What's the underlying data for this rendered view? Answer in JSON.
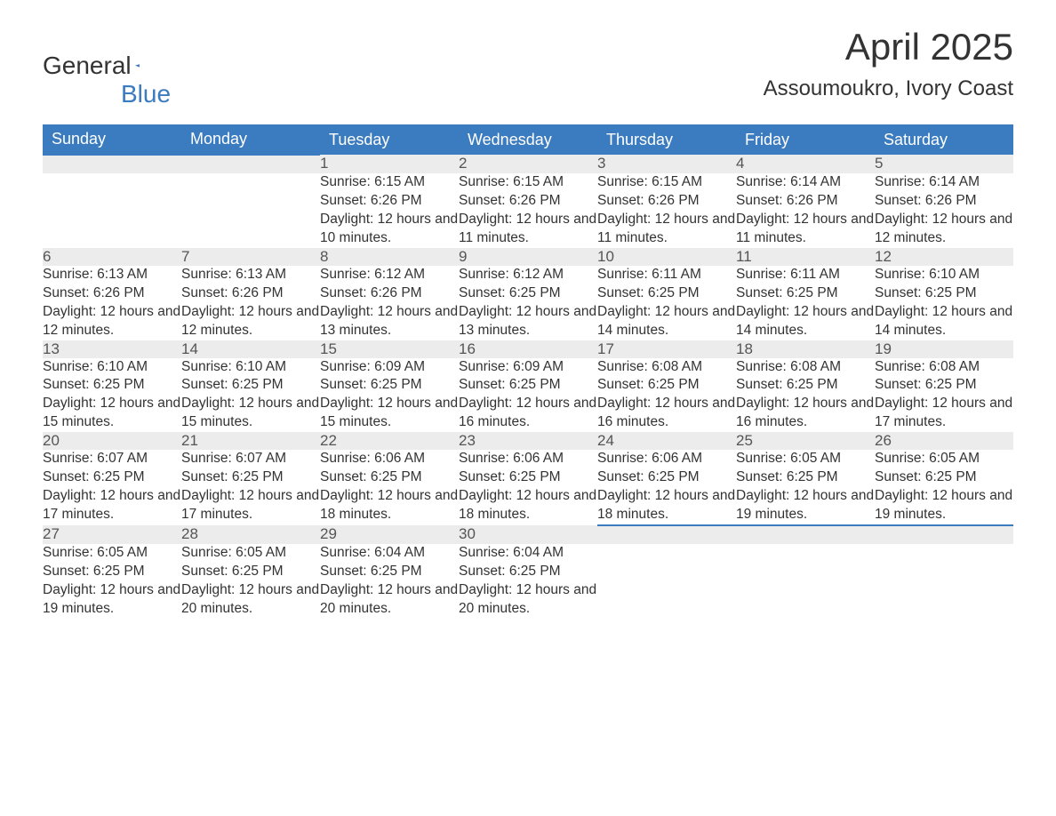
{
  "brand": {
    "part1": "General",
    "part2": "Blue"
  },
  "title": "April 2025",
  "location": "Assoumoukro, Ivory Coast",
  "colors": {
    "header_bg": "#3b7bbf",
    "header_text": "#ffffff",
    "daynum_bg": "#ececec",
    "daynum_border": "#3b7bbf",
    "body_text": "#333333",
    "page_bg": "#ffffff"
  },
  "typography": {
    "title_fontsize": 42,
    "location_fontsize": 24,
    "weekday_fontsize": 18,
    "daynum_fontsize": 17,
    "cell_fontsize": 15.5
  },
  "weekdays": [
    "Sunday",
    "Monday",
    "Tuesday",
    "Wednesday",
    "Thursday",
    "Friday",
    "Saturday"
  ],
  "weeks": [
    [
      null,
      null,
      {
        "n": "1",
        "sr": "Sunrise: 6:15 AM",
        "ss": "Sunset: 6:26 PM",
        "dl": "Daylight: 12 hours and 10 minutes."
      },
      {
        "n": "2",
        "sr": "Sunrise: 6:15 AM",
        "ss": "Sunset: 6:26 PM",
        "dl": "Daylight: 12 hours and 11 minutes."
      },
      {
        "n": "3",
        "sr": "Sunrise: 6:15 AM",
        "ss": "Sunset: 6:26 PM",
        "dl": "Daylight: 12 hours and 11 minutes."
      },
      {
        "n": "4",
        "sr": "Sunrise: 6:14 AM",
        "ss": "Sunset: 6:26 PM",
        "dl": "Daylight: 12 hours and 11 minutes."
      },
      {
        "n": "5",
        "sr": "Sunrise: 6:14 AM",
        "ss": "Sunset: 6:26 PM",
        "dl": "Daylight: 12 hours and 12 minutes."
      }
    ],
    [
      {
        "n": "6",
        "sr": "Sunrise: 6:13 AM",
        "ss": "Sunset: 6:26 PM",
        "dl": "Daylight: 12 hours and 12 minutes."
      },
      {
        "n": "7",
        "sr": "Sunrise: 6:13 AM",
        "ss": "Sunset: 6:26 PM",
        "dl": "Daylight: 12 hours and 12 minutes."
      },
      {
        "n": "8",
        "sr": "Sunrise: 6:12 AM",
        "ss": "Sunset: 6:26 PM",
        "dl": "Daylight: 12 hours and 13 minutes."
      },
      {
        "n": "9",
        "sr": "Sunrise: 6:12 AM",
        "ss": "Sunset: 6:25 PM",
        "dl": "Daylight: 12 hours and 13 minutes."
      },
      {
        "n": "10",
        "sr": "Sunrise: 6:11 AM",
        "ss": "Sunset: 6:25 PM",
        "dl": "Daylight: 12 hours and 14 minutes."
      },
      {
        "n": "11",
        "sr": "Sunrise: 6:11 AM",
        "ss": "Sunset: 6:25 PM",
        "dl": "Daylight: 12 hours and 14 minutes."
      },
      {
        "n": "12",
        "sr": "Sunrise: 6:10 AM",
        "ss": "Sunset: 6:25 PM",
        "dl": "Daylight: 12 hours and 14 minutes."
      }
    ],
    [
      {
        "n": "13",
        "sr": "Sunrise: 6:10 AM",
        "ss": "Sunset: 6:25 PM",
        "dl": "Daylight: 12 hours and 15 minutes."
      },
      {
        "n": "14",
        "sr": "Sunrise: 6:10 AM",
        "ss": "Sunset: 6:25 PM",
        "dl": "Daylight: 12 hours and 15 minutes."
      },
      {
        "n": "15",
        "sr": "Sunrise: 6:09 AM",
        "ss": "Sunset: 6:25 PM",
        "dl": "Daylight: 12 hours and 15 minutes."
      },
      {
        "n": "16",
        "sr": "Sunrise: 6:09 AM",
        "ss": "Sunset: 6:25 PM",
        "dl": "Daylight: 12 hours and 16 minutes."
      },
      {
        "n": "17",
        "sr": "Sunrise: 6:08 AM",
        "ss": "Sunset: 6:25 PM",
        "dl": "Daylight: 12 hours and 16 minutes."
      },
      {
        "n": "18",
        "sr": "Sunrise: 6:08 AM",
        "ss": "Sunset: 6:25 PM",
        "dl": "Daylight: 12 hours and 16 minutes."
      },
      {
        "n": "19",
        "sr": "Sunrise: 6:08 AM",
        "ss": "Sunset: 6:25 PM",
        "dl": "Daylight: 12 hours and 17 minutes."
      }
    ],
    [
      {
        "n": "20",
        "sr": "Sunrise: 6:07 AM",
        "ss": "Sunset: 6:25 PM",
        "dl": "Daylight: 12 hours and 17 minutes."
      },
      {
        "n": "21",
        "sr": "Sunrise: 6:07 AM",
        "ss": "Sunset: 6:25 PM",
        "dl": "Daylight: 12 hours and 17 minutes."
      },
      {
        "n": "22",
        "sr": "Sunrise: 6:06 AM",
        "ss": "Sunset: 6:25 PM",
        "dl": "Daylight: 12 hours and 18 minutes."
      },
      {
        "n": "23",
        "sr": "Sunrise: 6:06 AM",
        "ss": "Sunset: 6:25 PM",
        "dl": "Daylight: 12 hours and 18 minutes."
      },
      {
        "n": "24",
        "sr": "Sunrise: 6:06 AM",
        "ss": "Sunset: 6:25 PM",
        "dl": "Daylight: 12 hours and 18 minutes."
      },
      {
        "n": "25",
        "sr": "Sunrise: 6:05 AM",
        "ss": "Sunset: 6:25 PM",
        "dl": "Daylight: 12 hours and 19 minutes."
      },
      {
        "n": "26",
        "sr": "Sunrise: 6:05 AM",
        "ss": "Sunset: 6:25 PM",
        "dl": "Daylight: 12 hours and 19 minutes."
      }
    ],
    [
      {
        "n": "27",
        "sr": "Sunrise: 6:05 AM",
        "ss": "Sunset: 6:25 PM",
        "dl": "Daylight: 12 hours and 19 minutes."
      },
      {
        "n": "28",
        "sr": "Sunrise: 6:05 AM",
        "ss": "Sunset: 6:25 PM",
        "dl": "Daylight: 12 hours and 20 minutes."
      },
      {
        "n": "29",
        "sr": "Sunrise: 6:04 AM",
        "ss": "Sunset: 6:25 PM",
        "dl": "Daylight: 12 hours and 20 minutes."
      },
      {
        "n": "30",
        "sr": "Sunrise: 6:04 AM",
        "ss": "Sunset: 6:25 PM",
        "dl": "Daylight: 12 hours and 20 minutes."
      },
      null,
      null,
      null
    ]
  ]
}
